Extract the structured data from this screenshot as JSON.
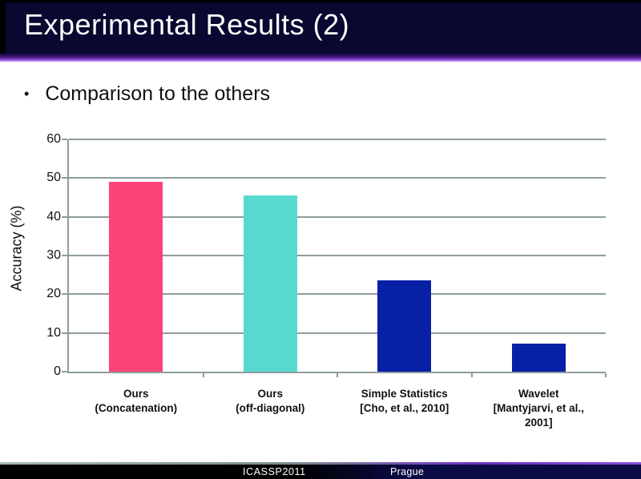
{
  "slide": {
    "title": "Experimental Results (2)",
    "bullet": "Comparison to the others",
    "footer": {
      "conference": "ICASSP2011",
      "location": "Prague"
    }
  },
  "chart_data": {
    "type": "bar",
    "title": "",
    "xlabel": "",
    "ylabel": "Accuracy (%)",
    "ylim": [
      0,
      60
    ],
    "yticks": [
      0,
      10,
      20,
      30,
      40,
      50,
      60
    ],
    "grid": true,
    "legend": false,
    "categories": [
      "Ours\n(Concatenation)",
      "Ours\n(off-diagonal)",
      "Simple Statistics\n[Cho, et al., 2010]",
      "Wavelet\n[Mantyjarvi, et al.,\n2001]"
    ],
    "values": [
      49,
      45.5,
      23.5,
      7.2
    ],
    "bar_colors": [
      "#fc4378",
      "#58d9d0",
      "#0720a6",
      "#0720a6"
    ]
  },
  "palette": {
    "header_bg": "#080830",
    "accent_gradient": "#7a38c8",
    "grid_color": "#8f9c9c",
    "footer_left": "#000000",
    "footer_right": "#0b0b46",
    "text_color": "#111111"
  }
}
